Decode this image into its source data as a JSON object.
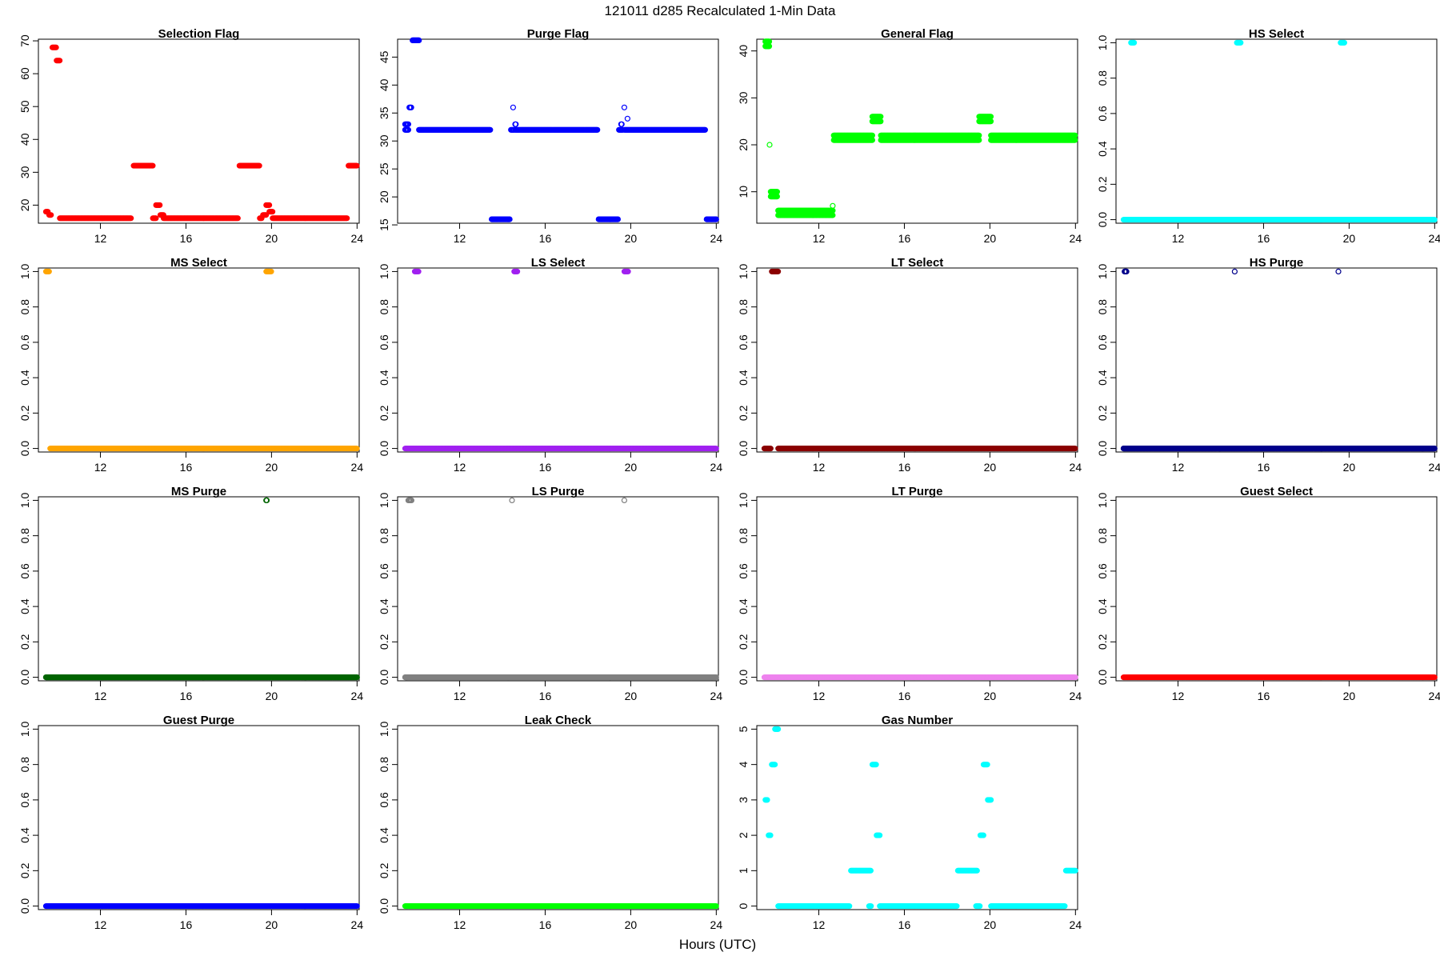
{
  "page": {
    "title": "121011    d285    Recalculated 1-Min Data",
    "xlabel": "Hours (UTC)"
  },
  "chart_data": [
    {
      "type": "scatter",
      "title": "Selection Flag",
      "color": "#ff0000",
      "marker": "filled",
      "xlim": [
        9.1,
        24.1
      ],
      "ylim": [
        14.5,
        70.5
      ],
      "xticks": [
        12,
        16,
        20,
        24
      ],
      "yticks": [
        20,
        30,
        40,
        50,
        60,
        70
      ],
      "runs": [
        {
          "y": 18,
          "x": [
            9.45,
            9.55
          ]
        },
        {
          "y": 17,
          "x": [
            9.6,
            9.7
          ]
        },
        {
          "y": 68,
          "x": [
            9.75,
            9.95
          ]
        },
        {
          "y": 64,
          "x": [
            9.95,
            10.1
          ]
        },
        {
          "y": 16,
          "x": [
            10.1,
            13.45
          ]
        },
        {
          "y": 32,
          "x": [
            13.55,
            14.45
          ]
        },
        {
          "y": 16,
          "x": [
            14.45,
            14.6
          ]
        },
        {
          "y": 20,
          "x": [
            14.6,
            14.8
          ]
        },
        {
          "y": 17,
          "x": [
            14.8,
            14.95
          ]
        },
        {
          "y": 16,
          "x": [
            14.95,
            18.45
          ]
        },
        {
          "y": 32,
          "x": [
            18.5,
            19.45
          ]
        },
        {
          "y": 16,
          "x": [
            19.45,
            19.55
          ]
        },
        {
          "y": 17,
          "x": [
            19.6,
            19.75
          ]
        },
        {
          "y": 20,
          "x": [
            19.75,
            19.9
          ]
        },
        {
          "y": 18,
          "x": [
            19.9,
            20.05
          ]
        },
        {
          "y": 16,
          "x": [
            20.05,
            23.55
          ]
        },
        {
          "y": 32,
          "x": [
            23.6,
            24.0
          ]
        }
      ]
    },
    {
      "type": "scatter",
      "title": "Purge Flag",
      "color": "#0000ff",
      "marker": "open",
      "xlim": [
        9.1,
        24.1
      ],
      "ylim": [
        15.3,
        48.2
      ],
      "xticks": [
        12,
        16,
        20,
        24
      ],
      "yticks": [
        15,
        20,
        25,
        30,
        35,
        40,
        45
      ],
      "runs": [
        {
          "y": 32,
          "x": [
            9.45,
            9.6
          ]
        },
        {
          "y": 33,
          "x": [
            9.45,
            9.6
          ]
        },
        {
          "y": 36,
          "x": [
            9.65,
            9.75
          ]
        },
        {
          "y": 48,
          "x": [
            9.8,
            10.1
          ]
        },
        {
          "y": 32,
          "x": [
            10.1,
            13.45
          ]
        },
        {
          "y": 16,
          "x": [
            13.5,
            14.35
          ]
        },
        {
          "y": 32,
          "x": [
            14.4,
            14.55
          ]
        },
        {
          "y": 36,
          "x": [
            14.5,
            14.5
          ]
        },
        {
          "y": 33,
          "x": [
            14.6,
            14.65
          ]
        },
        {
          "y": 32,
          "x": [
            14.6,
            18.45
          ]
        },
        {
          "y": 16,
          "x": [
            18.5,
            19.4
          ]
        },
        {
          "y": 32,
          "x": [
            19.45,
            19.65
          ]
        },
        {
          "y": 33,
          "x": [
            19.55,
            19.6
          ]
        },
        {
          "y": 36,
          "x": [
            19.7,
            19.7
          ]
        },
        {
          "y": 34,
          "x": [
            19.85,
            19.85
          ]
        },
        {
          "y": 32,
          "x": [
            19.7,
            23.5
          ]
        },
        {
          "y": 16,
          "x": [
            23.55,
            24.0
          ]
        }
      ]
    },
    {
      "type": "scatter",
      "title": "General Flag",
      "color": "#00ff00",
      "marker": "open",
      "xlim": [
        9.1,
        24.1
      ],
      "ylim": [
        3.3,
        42.5
      ],
      "xticks": [
        12,
        16,
        20,
        24
      ],
      "yticks": [
        10,
        20,
        30,
        40
      ],
      "runs": [
        {
          "y": 42,
          "x": [
            9.5,
            9.7
          ]
        },
        {
          "y": 41,
          "x": [
            9.5,
            9.7
          ]
        },
        {
          "y": 20,
          "x": [
            9.7,
            9.7
          ]
        },
        {
          "y": 10,
          "x": [
            9.75,
            10.05
          ]
        },
        {
          "y": 9,
          "x": [
            9.75,
            10.05
          ]
        },
        {
          "y": 6,
          "x": [
            10.1,
            12.65
          ]
        },
        {
          "y": 5,
          "x": [
            10.1,
            12.65
          ]
        },
        {
          "y": 7,
          "x": [
            12.65,
            12.65
          ]
        },
        {
          "y": 22,
          "x": [
            12.7,
            14.5
          ]
        },
        {
          "y": 21,
          "x": [
            12.7,
            14.5
          ]
        },
        {
          "y": 26,
          "x": [
            14.5,
            14.9
          ]
        },
        {
          "y": 25,
          "x": [
            14.5,
            14.9
          ]
        },
        {
          "y": 22,
          "x": [
            14.9,
            19.5
          ]
        },
        {
          "y": 21,
          "x": [
            14.9,
            19.5
          ]
        },
        {
          "y": 26,
          "x": [
            19.5,
            20.05
          ]
        },
        {
          "y": 25,
          "x": [
            19.5,
            20.05
          ]
        },
        {
          "y": 22,
          "x": [
            20.05,
            24.0
          ]
        },
        {
          "y": 21,
          "x": [
            20.05,
            24.0
          ]
        }
      ]
    },
    {
      "type": "scatter",
      "title": "HS Select",
      "color": "#00ffff",
      "marker": "filled",
      "xlim": [
        9.1,
        24.1
      ],
      "ylim": [
        -0.02,
        1.02
      ],
      "xticks": [
        12,
        16,
        20,
        24
      ],
      "yticks": [
        0.0,
        0.2,
        0.4,
        0.6,
        0.8,
        1.0
      ],
      "runs": [
        {
          "y": 1,
          "x": [
            9.8,
            9.95
          ]
        },
        {
          "y": 1,
          "x": [
            14.75,
            14.95
          ]
        },
        {
          "y": 1,
          "x": [
            19.6,
            19.8
          ]
        },
        {
          "y": 0,
          "x": [
            9.45,
            24.0
          ]
        }
      ]
    },
    {
      "type": "scatter",
      "title": "MS Select",
      "color": "#ffa500",
      "marker": "filled",
      "xlim": [
        9.1,
        24.1
      ],
      "ylim": [
        -0.02,
        1.02
      ],
      "xticks": [
        12,
        16,
        20,
        24
      ],
      "yticks": [
        0.0,
        0.2,
        0.4,
        0.6,
        0.8,
        1.0
      ],
      "runs": [
        {
          "y": 1,
          "x": [
            9.45,
            9.6
          ]
        },
        {
          "y": 1,
          "x": [
            19.75,
            20.0
          ]
        },
        {
          "y": 0,
          "x": [
            9.65,
            24.0
          ]
        }
      ]
    },
    {
      "type": "scatter",
      "title": "LS Select",
      "color": "#a020f0",
      "marker": "filled",
      "xlim": [
        9.1,
        24.1
      ],
      "ylim": [
        -0.02,
        1.02
      ],
      "xticks": [
        12,
        16,
        20,
        24
      ],
      "yticks": [
        0.0,
        0.2,
        0.4,
        0.6,
        0.8,
        1.0
      ],
      "runs": [
        {
          "y": 1,
          "x": [
            9.9,
            10.1
          ]
        },
        {
          "y": 1,
          "x": [
            14.55,
            14.7
          ]
        },
        {
          "y": 1,
          "x": [
            19.7,
            19.9
          ]
        },
        {
          "y": 0,
          "x": [
            9.45,
            24.0
          ]
        }
      ]
    },
    {
      "type": "scatter",
      "title": "LT Select",
      "color": "#8b0000",
      "marker": "filled",
      "xlim": [
        9.1,
        24.1
      ],
      "ylim": [
        -0.02,
        1.02
      ],
      "xticks": [
        12,
        16,
        20,
        24
      ],
      "yticks": [
        0.0,
        0.2,
        0.4,
        0.6,
        0.8,
        1.0
      ],
      "runs": [
        {
          "y": 1,
          "x": [
            9.8,
            10.1
          ]
        },
        {
          "y": 0,
          "x": [
            9.45,
            9.75
          ]
        },
        {
          "y": 0,
          "x": [
            10.1,
            24.0
          ]
        }
      ]
    },
    {
      "type": "scatter",
      "title": "HS Purge",
      "color": "#00008b",
      "marker": "open",
      "xlim": [
        9.1,
        24.1
      ],
      "ylim": [
        -0.02,
        1.02
      ],
      "xticks": [
        12,
        16,
        20,
        24
      ],
      "yticks": [
        0.0,
        0.2,
        0.4,
        0.6,
        0.8,
        1.0
      ],
      "runs": [
        {
          "y": 1,
          "x": [
            9.5,
            9.6
          ]
        },
        {
          "y": 1,
          "x": [
            14.65,
            14.65
          ]
        },
        {
          "y": 1,
          "x": [
            19.5,
            19.5
          ]
        },
        {
          "y": 0,
          "x": [
            9.45,
            24.0
          ]
        }
      ]
    },
    {
      "type": "scatter",
      "title": "MS Purge",
      "color": "#006400",
      "marker": "open",
      "xlim": [
        9.1,
        24.1
      ],
      "ylim": [
        -0.02,
        1.02
      ],
      "xticks": [
        12,
        16,
        20,
        24
      ],
      "yticks": [
        0.0,
        0.2,
        0.4,
        0.6,
        0.8,
        1.0
      ],
      "runs": [
        {
          "y": 1,
          "x": [
            19.75,
            19.8
          ]
        },
        {
          "y": 0,
          "x": [
            9.45,
            24.0
          ]
        }
      ]
    },
    {
      "type": "scatter",
      "title": "LS Purge",
      "color": "#808080",
      "marker": "open",
      "xlim": [
        9.1,
        24.1
      ],
      "ylim": [
        -0.02,
        1.02
      ],
      "xticks": [
        12,
        16,
        20,
        24
      ],
      "yticks": [
        0.0,
        0.2,
        0.4,
        0.6,
        0.8,
        1.0
      ],
      "runs": [
        {
          "y": 1,
          "x": [
            9.6,
            9.75
          ]
        },
        {
          "y": 1,
          "x": [
            14.45,
            14.45
          ]
        },
        {
          "y": 1,
          "x": [
            19.7,
            19.7
          ]
        },
        {
          "y": 0,
          "x": [
            9.45,
            24.0
          ]
        }
      ]
    },
    {
      "type": "scatter",
      "title": "LT Purge",
      "color": "#ee82ee",
      "marker": "filled",
      "xlim": [
        9.1,
        24.1
      ],
      "ylim": [
        -0.02,
        1.02
      ],
      "xticks": [
        12,
        16,
        20,
        24
      ],
      "yticks": [
        0.0,
        0.2,
        0.4,
        0.6,
        0.8,
        1.0
      ],
      "runs": [
        {
          "y": 0,
          "x": [
            9.45,
            24.0
          ]
        }
      ]
    },
    {
      "type": "scatter",
      "title": "Guest Select",
      "color": "#ff0000",
      "marker": "filled",
      "xlim": [
        9.1,
        24.1
      ],
      "ylim": [
        -0.02,
        1.02
      ],
      "xticks": [
        12,
        16,
        20,
        24
      ],
      "yticks": [
        0.0,
        0.2,
        0.4,
        0.6,
        0.8,
        1.0
      ],
      "runs": [
        {
          "y": 0,
          "x": [
            9.45,
            24.0
          ]
        }
      ]
    },
    {
      "type": "scatter",
      "title": "Guest Purge",
      "color": "#0000ff",
      "marker": "filled",
      "xlim": [
        9.1,
        24.1
      ],
      "ylim": [
        -0.02,
        1.02
      ],
      "xticks": [
        12,
        16,
        20,
        24
      ],
      "yticks": [
        0.0,
        0.2,
        0.4,
        0.6,
        0.8,
        1.0
      ],
      "runs": [
        {
          "y": 0,
          "x": [
            9.45,
            24.0
          ]
        }
      ]
    },
    {
      "type": "scatter",
      "title": "Leak Check",
      "color": "#00ff00",
      "marker": "filled",
      "xlim": [
        9.1,
        24.1
      ],
      "ylim": [
        -0.02,
        1.02
      ],
      "xticks": [
        12,
        16,
        20,
        24
      ],
      "yticks": [
        0.0,
        0.2,
        0.4,
        0.6,
        0.8,
        1.0
      ],
      "runs": [
        {
          "y": 0,
          "x": [
            9.45,
            24.0
          ]
        }
      ]
    },
    {
      "type": "scatter",
      "title": "Gas Number",
      "color": "#00ffff",
      "marker": "filled",
      "xlim": [
        9.1,
        24.1
      ],
      "ylim": [
        -0.1,
        5.1
      ],
      "xticks": [
        12,
        16,
        20,
        24
      ],
      "yticks": [
        0,
        1,
        2,
        3,
        4,
        5
      ],
      "runs": [
        {
          "y": 3,
          "x": [
            9.5,
            9.6
          ]
        },
        {
          "y": 2,
          "x": [
            9.65,
            9.75
          ]
        },
        {
          "y": 4,
          "x": [
            9.8,
            9.95
          ]
        },
        {
          "y": 5,
          "x": [
            9.95,
            10.1
          ]
        },
        {
          "y": 0,
          "x": [
            10.1,
            13.45
          ]
        },
        {
          "y": 1,
          "x": [
            13.5,
            14.45
          ]
        },
        {
          "y": 0,
          "x": [
            14.35,
            14.45
          ]
        },
        {
          "y": 4,
          "x": [
            14.5,
            14.7
          ]
        },
        {
          "y": 2,
          "x": [
            14.7,
            14.85
          ]
        },
        {
          "y": 0,
          "x": [
            14.85,
            18.45
          ]
        },
        {
          "y": 1,
          "x": [
            18.5,
            19.4
          ]
        },
        {
          "y": 0,
          "x": [
            19.35,
            19.55
          ]
        },
        {
          "y": 2,
          "x": [
            19.55,
            19.7
          ]
        },
        {
          "y": 4,
          "x": [
            19.7,
            19.9
          ]
        },
        {
          "y": 3,
          "x": [
            19.9,
            20.05
          ]
        },
        {
          "y": 0,
          "x": [
            20.05,
            23.5
          ]
        },
        {
          "y": 1,
          "x": [
            23.55,
            24.0
          ]
        }
      ]
    }
  ]
}
